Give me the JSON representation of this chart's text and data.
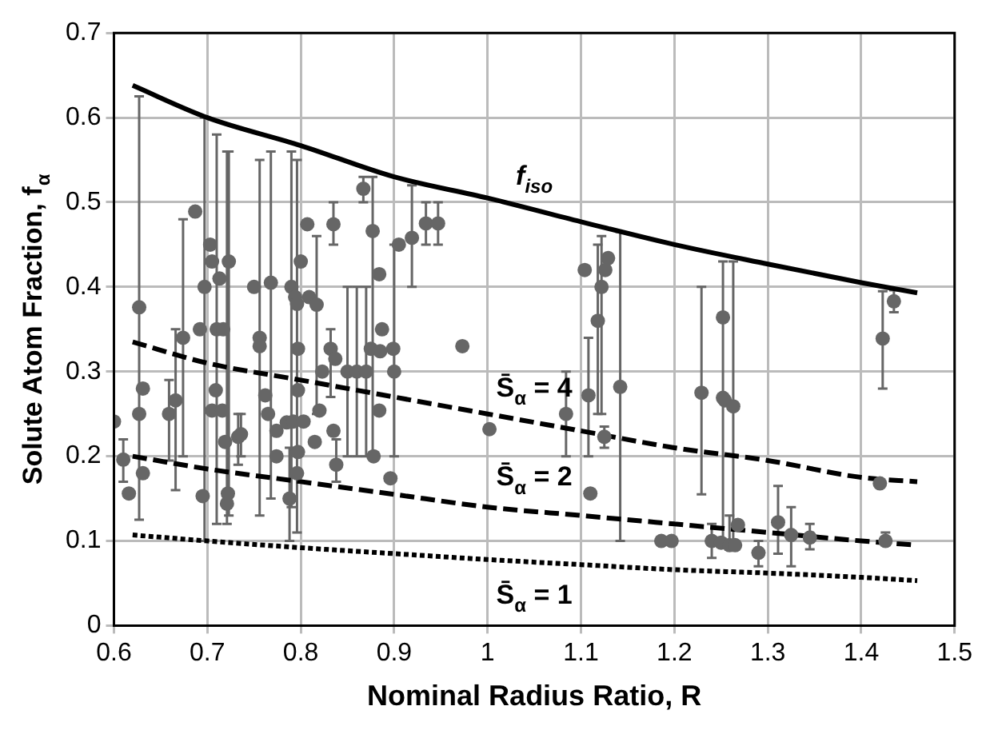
{
  "chart_data": {
    "type": "scatter",
    "xlabel": "Nominal Radius Ratio, R",
    "ylabel": "Solute Atom Fraction, f$_{α}$",
    "xlim": [
      0.6,
      1.5
    ],
    "xticks": [
      0.6,
      0.7,
      0.8,
      0.9,
      1,
      1.1,
      1.2,
      1.3,
      1.4,
      1.5
    ],
    "ylim": [
      0,
      0.7
    ],
    "yticks": [
      0,
      0.1,
      0.2,
      0.3,
      0.4,
      0.5,
      0.6,
      0.7
    ],
    "grid": true,
    "legend": false,
    "series": [
      {
        "marker": "circle",
        "color": "#666666",
        "x": [
          0.6,
          0.61,
          0.616,
          0.627,
          0.627,
          0.631,
          0.631,
          0.659,
          0.666,
          0.674,
          0.687,
          0.692,
          0.695,
          0.697,
          0.703,
          0.705,
          0.71,
          0.713,
          0.705,
          0.709,
          0.716,
          0.719,
          0.721,
          0.723,
          0.717,
          0.722,
          0.733,
          0.736,
          0.75,
          0.756,
          0.756,
          0.762,
          0.765,
          0.768,
          0.774,
          0.774,
          0.785,
          0.788,
          0.79,
          0.794,
          0.796,
          0.797,
          0.797,
          0.792,
          0.797,
          0.796,
          0.807,
          0.809,
          0.803,
          0.8,
          0.817,
          0.82,
          0.815,
          0.823,
          0.835,
          0.832,
          0.837,
          0.835,
          0.838,
          0.85,
          0.86,
          0.87,
          0.867,
          0.875,
          0.877,
          0.884,
          0.884,
          0.887,
          0.878,
          0.896,
          0.899,
          0.885,
          0.9,
          0.905,
          0.919,
          0.934,
          0.947,
          0.973,
          1.002,
          1.084,
          1.104,
          1.108,
          1.11,
          1.118,
          1.122,
          1.126,
          1.129,
          1.142,
          1.125,
          1.186,
          1.197,
          1.229,
          1.252,
          1.252,
          1.254,
          1.263,
          1.24,
          1.25,
          1.259,
          1.265,
          1.268,
          1.29,
          1.311,
          1.325,
          1.345,
          1.423,
          1.435,
          1.42,
          1.426
        ],
        "values": [
          0.241,
          0.196,
          0.156,
          0.376,
          0.25,
          0.28,
          0.18,
          0.25,
          0.266,
          0.34,
          0.489,
          0.35,
          0.153,
          0.4,
          0.45,
          0.43,
          0.35,
          0.41,
          0.254,
          0.278,
          0.254,
          0.217,
          0.144,
          0.43,
          0.35,
          0.156,
          0.223,
          0.226,
          0.4,
          0.34,
          0.33,
          0.272,
          0.25,
          0.405,
          0.23,
          0.2,
          0.24,
          0.15,
          0.4,
          0.388,
          0.38,
          0.327,
          0.278,
          0.241,
          0.205,
          0.18,
          0.474,
          0.388,
          0.241,
          0.43,
          0.379,
          0.254,
          0.217,
          0.3,
          0.474,
          0.327,
          0.315,
          0.23,
          0.19,
          0.3,
          0.3,
          0.3,
          0.516,
          0.327,
          0.466,
          0.254,
          0.415,
          0.35,
          0.2,
          0.174,
          0.327,
          0.324,
          0.3,
          0.45,
          0.458,
          0.475,
          0.475,
          0.33,
          0.232,
          0.25,
          0.42,
          0.272,
          0.156,
          0.36,
          0.4,
          0.42,
          0.434,
          0.282,
          0.223,
          0.1,
          0.1,
          0.275,
          0.364,
          0.269,
          0.266,
          0.259,
          0.1,
          0.098,
          0.095,
          0.095,
          0.119,
          0.086,
          0.122,
          0.107,
          0.104,
          0.339,
          0.383,
          0.168,
          0.1
        ],
        "errors": [
          null,
          [
            0.17,
            0.22
          ],
          null,
          [
            0.125,
            0.625
          ],
          null,
          null,
          null,
          [
            0.195,
            0.29
          ],
          [
            0.16,
            0.35
          ],
          [
            0.2,
            0.48
          ],
          null,
          null,
          null,
          [
            0.1,
            0.6
          ],
          null,
          null,
          [
            0.12,
            0.58
          ],
          null,
          null,
          null,
          null,
          null,
          [
            0.12,
            0.56
          ],
          [
            0.13,
            0.56
          ],
          null,
          null,
          [
            0.19,
            0.25
          ],
          [
            0.2,
            0.25
          ],
          null,
          [
            0.13,
            0.55
          ],
          null,
          null,
          null,
          [
            0.15,
            0.56
          ],
          null,
          null,
          null,
          [
            0.1,
            0.21
          ],
          [
            0.14,
            0.56
          ],
          null,
          [
            0.11,
            0.55
          ],
          null,
          null,
          null,
          null,
          null,
          null,
          null,
          null,
          null,
          [
            0.25,
            0.46
          ],
          null,
          null,
          null,
          [
            0.45,
            0.5
          ],
          [
            0.27,
            0.35
          ],
          null,
          null,
          [
            0.17,
            0.22
          ],
          [
            0.2,
            0.4
          ],
          [
            0.2,
            0.4
          ],
          [
            0.2,
            0.4
          ],
          [
            0.5,
            0.53
          ],
          null,
          [
            0.2,
            0.53
          ],
          null,
          null,
          null,
          null,
          null,
          null,
          null,
          [
            0.2,
            0.45
          ],
          null,
          [
            0.4,
            0.52
          ],
          [
            0.45,
            0.5
          ],
          [
            0.45,
            0.5
          ],
          null,
          null,
          [
            0.2,
            0.3
          ],
          null,
          [
            0.2,
            0.34
          ],
          null,
          [
            0.25,
            0.45
          ],
          [
            0.25,
            0.46
          ],
          null,
          null,
          [
            0.1,
            0.465
          ],
          [
            0.21,
            0.235
          ],
          null,
          null,
          [
            0.155,
            0.4
          ],
          [
            0.1,
            0.43
          ],
          null,
          null,
          [
            0.1,
            0.43
          ],
          [
            0.08,
            0.12
          ],
          null,
          [
            0.09,
            0.13
          ],
          null,
          null,
          [
            0.07,
            0.1
          ],
          [
            0.085,
            0.165
          ],
          [
            0.07,
            0.14
          ],
          [
            0.09,
            0.12
          ],
          [
            0.28,
            0.395
          ],
          [
            0.37,
            0.396
          ],
          null,
          [
            0.095,
            0.11
          ]
        ]
      },
      {
        "type": "line",
        "name": "f$_{iso}$",
        "color": "#000000",
        "line_style": "solid",
        "x": [
          0.62,
          0.7,
          0.8,
          0.9,
          1,
          1.1,
          1.2,
          1.3,
          1.4,
          1.46
        ],
        "values": [
          0.638,
          0.6,
          0.567,
          0.53,
          0.505,
          0.477,
          0.45,
          0.427,
          0.405,
          0.393
        ]
      },
      {
        "type": "line",
        "name": "S̄$_{α}$ = 4",
        "color": "#000000",
        "line_style": "dashed",
        "x": [
          0.62,
          0.7,
          0.8,
          0.9,
          1,
          1.1,
          1.2,
          1.3,
          1.4,
          1.46
        ],
        "values": [
          0.335,
          0.31,
          0.29,
          0.27,
          0.25,
          0.23,
          0.21,
          0.195,
          0.175,
          0.17
        ]
      },
      {
        "type": "line",
        "name": "S̄$_{α}$ = 2",
        "color": "#000000",
        "line_style": "dashed",
        "x": [
          0.62,
          0.7,
          0.8,
          0.9,
          1,
          1.1,
          1.2,
          1.3,
          1.4,
          1.46
        ],
        "values": [
          0.2,
          0.185,
          0.17,
          0.155,
          0.14,
          0.13,
          0.12,
          0.11,
          0.1,
          0.095
        ]
      },
      {
        "type": "line",
        "name": "S̄$_{α}$ = 1",
        "color": "#000000",
        "line_style": "dotted",
        "x": [
          0.62,
          0.7,
          0.8,
          0.9,
          1,
          1.1,
          1.2,
          1.3,
          1.4,
          1.46
        ],
        "values": [
          0.107,
          0.1,
          0.092,
          0.085,
          0.078,
          0.072,
          0.066,
          0.062,
          0.057,
          0.053
        ]
      }
    ]
  }
}
